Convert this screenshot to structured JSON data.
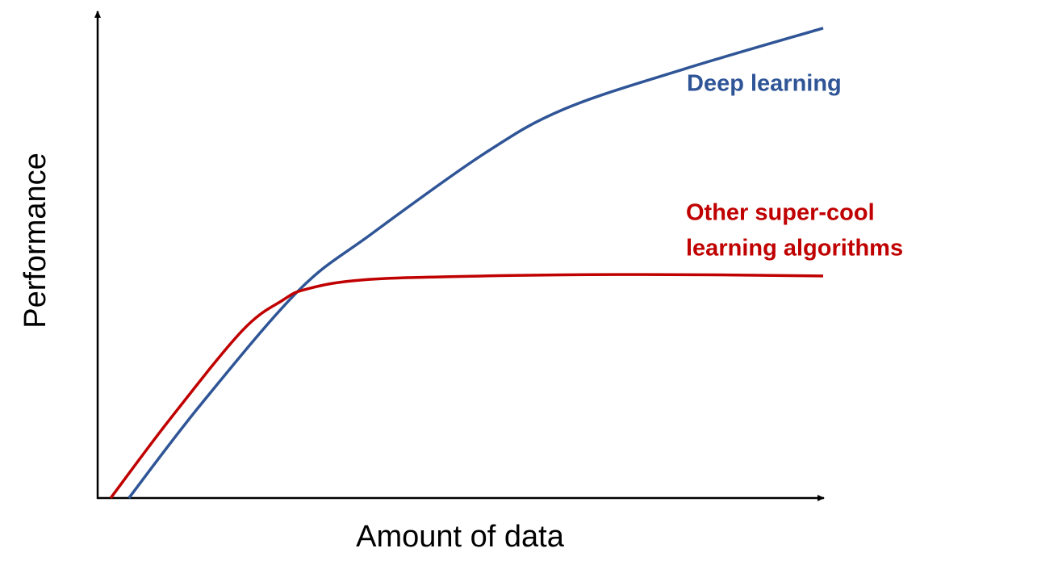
{
  "chart_data": {
    "type": "line",
    "x_label": "Amount of data",
    "y_label": "Performance",
    "xlim": [
      0,
      100
    ],
    "ylim": [
      0,
      100
    ],
    "series": [
      {
        "label": [
          "Deep learning"
        ],
        "color": "#2f5597",
        "x": [
          4.3,
          14.3,
          27.7,
          37.7,
          53.3,
          64.4,
          81.1,
          100
        ],
        "values": [
          0,
          19.4,
          42.7,
          54.3,
          70.9,
          80.1,
          88.4,
          96.7
        ]
      },
      {
        "label": [
          "Other super-cool",
          "learning algorithms"
        ],
        "color": "#c00000",
        "x": [
          1.8,
          9.9,
          19.9,
          25.5,
          28.8,
          36.6,
          53.3,
          75.5,
          100
        ],
        "values": [
          0,
          16.1,
          34.4,
          40.7,
          43.0,
          44.9,
          45.7,
          46.0,
          45.7
        ]
      }
    ]
  }
}
